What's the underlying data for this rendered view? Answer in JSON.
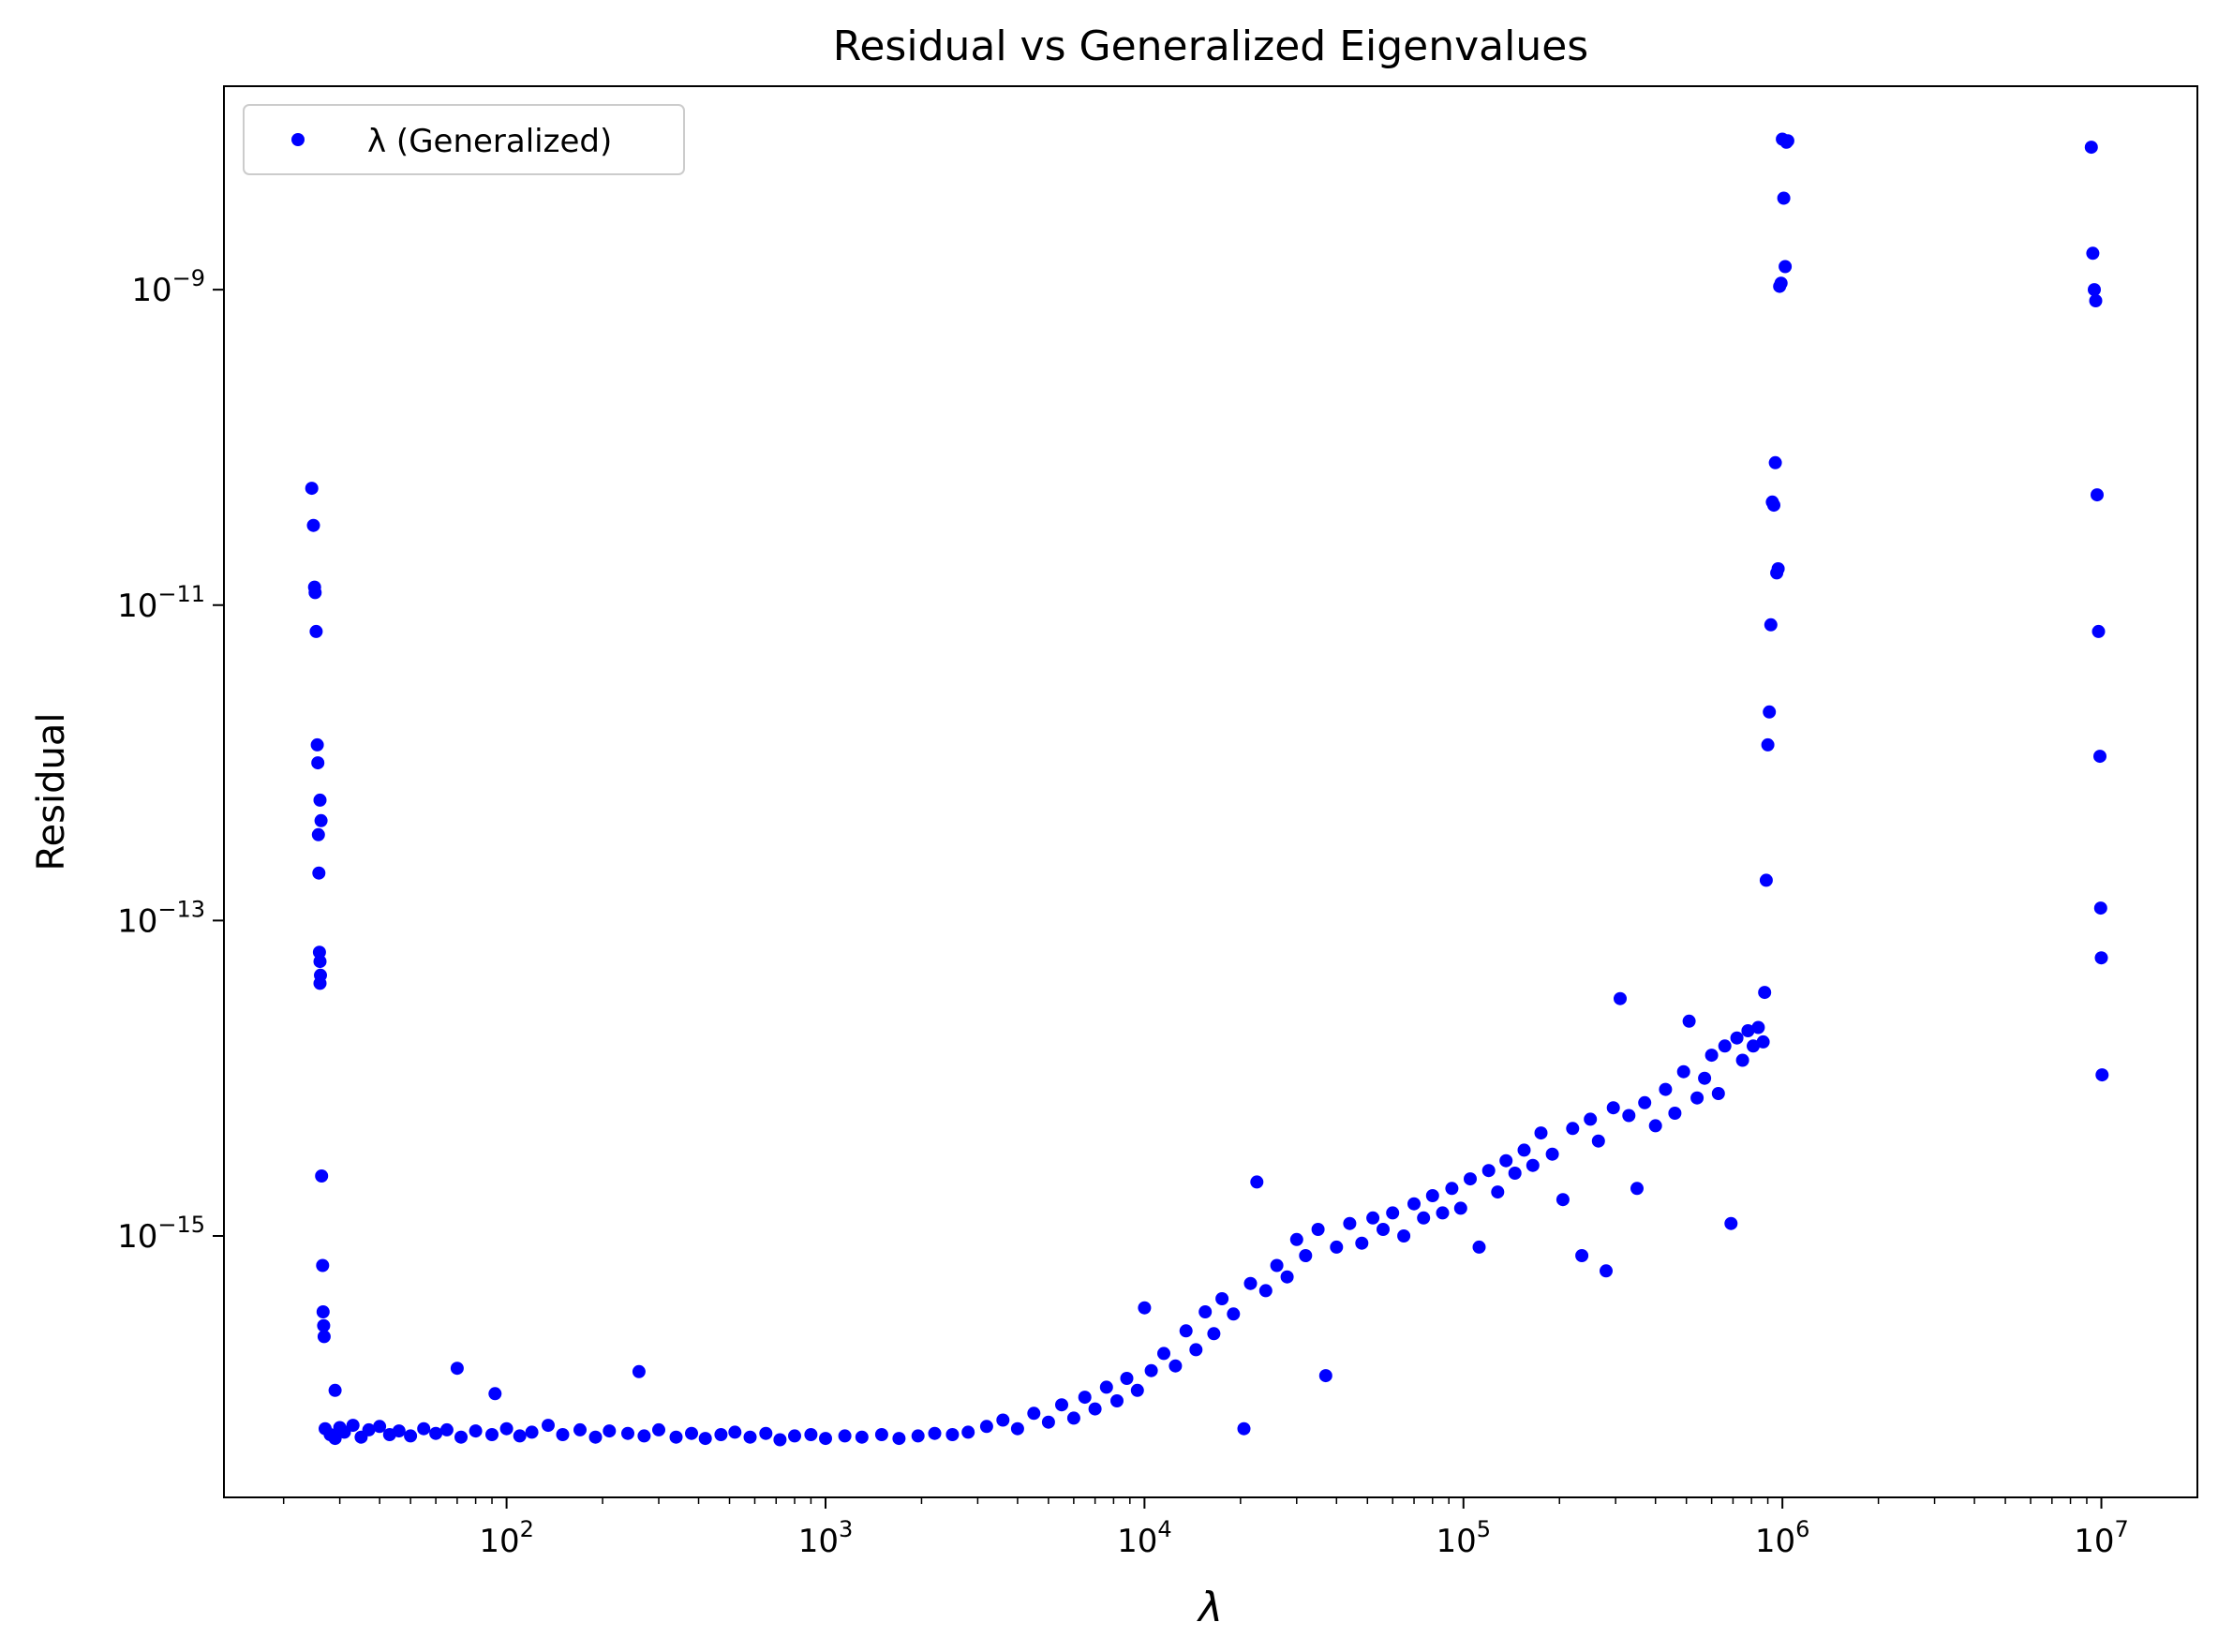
{
  "chart_data": {
    "type": "scatter",
    "title": "Residual vs Generalized Eigenvalues",
    "xlabel": "λ",
    "ylabel": "Residual",
    "xscale": "log",
    "yscale": "log",
    "xlim": [
      13,
      20000000
    ],
    "ylim": [
      2.2e-17,
      1.95e-08
    ],
    "x_ticks": [
      {
        "value": 100,
        "base": "10",
        "exp": "2"
      },
      {
        "value": 1000,
        "base": "10",
        "exp": "3"
      },
      {
        "value": 10000,
        "base": "10",
        "exp": "4"
      },
      {
        "value": 100000,
        "base": "10",
        "exp": "5"
      },
      {
        "value": 1000000,
        "base": "10",
        "exp": "6"
      },
      {
        "value": 10000000,
        "base": "10",
        "exp": "7"
      }
    ],
    "y_ticks": [
      {
        "value": 1e-15,
        "base": "10",
        "exp": "−15"
      },
      {
        "value": 1e-13,
        "base": "10",
        "exp": "−13"
      },
      {
        "value": 1e-11,
        "base": "10",
        "exp": "−11"
      },
      {
        "value": 1e-09,
        "base": "10",
        "exp": "−9"
      }
    ],
    "grid": false,
    "legend_position": "top-left",
    "series": [
      {
        "name": "λ (Generalized)",
        "color": "#0000ff",
        "marker": "circle",
        "points": [
          [
            24.5,
            5.5e-11
          ],
          [
            24.8,
            3.2e-11
          ],
          [
            25.0,
            1.3e-11
          ],
          [
            25.1,
            1.2e-11
          ],
          [
            25.3,
            6.8e-12
          ],
          [
            25.5,
            1.3e-12
          ],
          [
            25.6,
            1e-12
          ],
          [
            25.7,
            3.5e-13
          ],
          [
            25.8,
            2e-13
          ],
          [
            26.0,
            5.8e-13
          ],
          [
            26.2,
            4.3e-13
          ],
          [
            25.9,
            6.3e-14
          ],
          [
            26.0,
            5.5e-14
          ],
          [
            26.1,
            4.5e-14
          ],
          [
            26.0,
            4e-14
          ],
          [
            26.3,
            2.4e-15
          ],
          [
            26.5,
            6.5e-16
          ],
          [
            26.6,
            3.3e-16
          ],
          [
            26.7,
            2.7e-16
          ],
          [
            26.8,
            2.3e-16
          ],
          [
            29,
            1.05e-16
          ],
          [
            70,
            1.45e-16
          ],
          [
            92,
            1e-16
          ],
          [
            260,
            1.38e-16
          ],
          [
            27,
            6e-17
          ],
          [
            28,
            5.5e-17
          ],
          [
            29,
            5.2e-17
          ],
          [
            30,
            6.1e-17
          ],
          [
            31,
            5.7e-17
          ],
          [
            33,
            6.3e-17
          ],
          [
            35,
            5.3e-17
          ],
          [
            37,
            5.9e-17
          ],
          [
            40,
            6.2e-17
          ],
          [
            43,
            5.5e-17
          ],
          [
            46,
            5.8e-17
          ],
          [
            50,
            5.4e-17
          ],
          [
            55,
            6e-17
          ],
          [
            60,
            5.6e-17
          ],
          [
            65,
            5.9e-17
          ],
          [
            72,
            5.3e-17
          ],
          [
            80,
            5.8e-17
          ],
          [
            90,
            5.5e-17
          ],
          [
            100,
            6e-17
          ],
          [
            110,
            5.4e-17
          ],
          [
            120,
            5.7e-17
          ],
          [
            135,
            6.3e-17
          ],
          [
            150,
            5.5e-17
          ],
          [
            170,
            5.9e-17
          ],
          [
            190,
            5.3e-17
          ],
          [
            210,
            5.8e-17
          ],
          [
            240,
            5.6e-17
          ],
          [
            270,
            5.4e-17
          ],
          [
            300,
            5.9e-17
          ],
          [
            340,
            5.3e-17
          ],
          [
            380,
            5.6e-17
          ],
          [
            420,
            5.2e-17
          ],
          [
            470,
            5.5e-17
          ],
          [
            520,
            5.7e-17
          ],
          [
            580,
            5.3e-17
          ],
          [
            650,
            5.6e-17
          ],
          [
            720,
            5.1e-17
          ],
          [
            800,
            5.4e-17
          ],
          [
            900,
            5.5e-17
          ],
          [
            1000,
            5.2e-17
          ],
          [
            1150,
            5.4e-17
          ],
          [
            1300,
            5.3e-17
          ],
          [
            1500,
            5.5e-17
          ],
          [
            1700,
            5.2e-17
          ],
          [
            1950,
            5.4e-17
          ],
          [
            2200,
            5.6e-17
          ],
          [
            2500,
            5.5e-17
          ],
          [
            2800,
            5.7e-17
          ],
          [
            3200,
            6.2e-17
          ],
          [
            3600,
            6.8e-17
          ],
          [
            4000,
            6e-17
          ],
          [
            4500,
            7.5e-17
          ],
          [
            5000,
            6.6e-17
          ],
          [
            5500,
            8.5e-17
          ],
          [
            6000,
            7e-17
          ],
          [
            6500,
            9.5e-17
          ],
          [
            7000,
            8e-17
          ],
          [
            7600,
            1.1e-16
          ],
          [
            8200,
            9e-17
          ],
          [
            8800,
            1.25e-16
          ],
          [
            9500,
            1.05e-16
          ],
          [
            10000,
            3.5e-16
          ],
          [
            10500,
            1.4e-16
          ],
          [
            11500,
            1.8e-16
          ],
          [
            12500,
            1.5e-16
          ],
          [
            13500,
            2.5e-16
          ],
          [
            14500,
            1.9e-16
          ],
          [
            15500,
            3.3e-16
          ],
          [
            16500,
            2.4e-16
          ],
          [
            17500,
            4e-16
          ],
          [
            19000,
            3.2e-16
          ],
          [
            20500,
            6e-17
          ],
          [
            21500,
            5e-16
          ],
          [
            22500,
            2.2e-15
          ],
          [
            24000,
            4.5e-16
          ],
          [
            26000,
            6.5e-16
          ],
          [
            28000,
            5.5e-16
          ],
          [
            30000,
            9.5e-16
          ],
          [
            32000,
            7.5e-16
          ],
          [
            35000,
            1.1e-15
          ],
          [
            37000,
            1.3e-16
          ],
          [
            40000,
            8.5e-16
          ],
          [
            44000,
            1.2e-15
          ],
          [
            48000,
            9e-16
          ],
          [
            52000,
            1.3e-15
          ],
          [
            56000,
            1.1e-15
          ],
          [
            60000,
            1.4e-15
          ],
          [
            65000,
            1e-15
          ],
          [
            70000,
            1.6e-15
          ],
          [
            75000,
            1.3e-15
          ],
          [
            80000,
            1.8e-15
          ],
          [
            86000,
            1.4e-15
          ],
          [
            92000,
            2e-15
          ],
          [
            98000,
            1.5e-15
          ],
          [
            105000,
            2.3e-15
          ],
          [
            112000,
            8.5e-16
          ],
          [
            120000,
            2.6e-15
          ],
          [
            128000,
            1.9e-15
          ],
          [
            136000,
            3e-15
          ],
          [
            145000,
            2.5e-15
          ],
          [
            155000,
            3.5e-15
          ],
          [
            165000,
            2.8e-15
          ],
          [
            175000,
            4.5e-15
          ],
          [
            190000,
            3.3e-15
          ],
          [
            205000,
            1.7e-15
          ],
          [
            220000,
            4.8e-15
          ],
          [
            235000,
            7.5e-16
          ],
          [
            250000,
            5.5e-15
          ],
          [
            265000,
            4e-15
          ],
          [
            280000,
            6e-16
          ],
          [
            295000,
            6.5e-15
          ],
          [
            310000,
            3.2e-14
          ],
          [
            330000,
            5.8e-15
          ],
          [
            350000,
            2e-15
          ],
          [
            370000,
            7e-15
          ],
          [
            400000,
            5e-15
          ],
          [
            430000,
            8.5e-15
          ],
          [
            460000,
            6e-15
          ],
          [
            490000,
            1.1e-14
          ],
          [
            510000,
            2.3e-14
          ],
          [
            540000,
            7.5e-15
          ],
          [
            570000,
            1e-14
          ],
          [
            600000,
            1.4e-14
          ],
          [
            630000,
            8e-15
          ],
          [
            660000,
            1.6e-14
          ],
          [
            690000,
            1.2e-15
          ],
          [
            720000,
            1.8e-14
          ],
          [
            750000,
            1.3e-14
          ],
          [
            780000,
            2e-14
          ],
          [
            810000,
            1.6e-14
          ],
          [
            840000,
            2.1e-14
          ],
          [
            870000,
            1.7e-14
          ],
          [
            880000,
            3.5e-14
          ],
          [
            890000,
            1.8e-13
          ],
          [
            900000,
            1.3e-12
          ],
          [
            910000,
            2.1e-12
          ],
          [
            920000,
            7.5e-12
          ],
          [
            930000,
            4.5e-11
          ],
          [
            940000,
            4.3e-11
          ],
          [
            950000,
            8e-11
          ],
          [
            960000,
            1.6e-11
          ],
          [
            970000,
            1.7e-11
          ],
          [
            980000,
            1.05e-09
          ],
          [
            990000,
            1.1e-09
          ],
          [
            1000000,
            9e-09
          ],
          [
            1010000,
            3.8e-09
          ],
          [
            1020000,
            1.4e-09
          ],
          [
            1030000,
            8.6e-09
          ],
          [
            1040000,
            8.8e-09
          ],
          [
            9300000,
            8e-09
          ],
          [
            9400000,
            1.7e-09
          ],
          [
            9500000,
            1e-09
          ],
          [
            9600000,
            8.5e-10
          ],
          [
            9700000,
            5e-11
          ],
          [
            9800000,
            6.8e-12
          ],
          [
            9900000,
            1.1e-12
          ],
          [
            9950000,
            1.2e-13
          ],
          [
            10000000,
            5.8e-14
          ],
          [
            10050000,
            1.05e-14
          ]
        ]
      }
    ]
  }
}
